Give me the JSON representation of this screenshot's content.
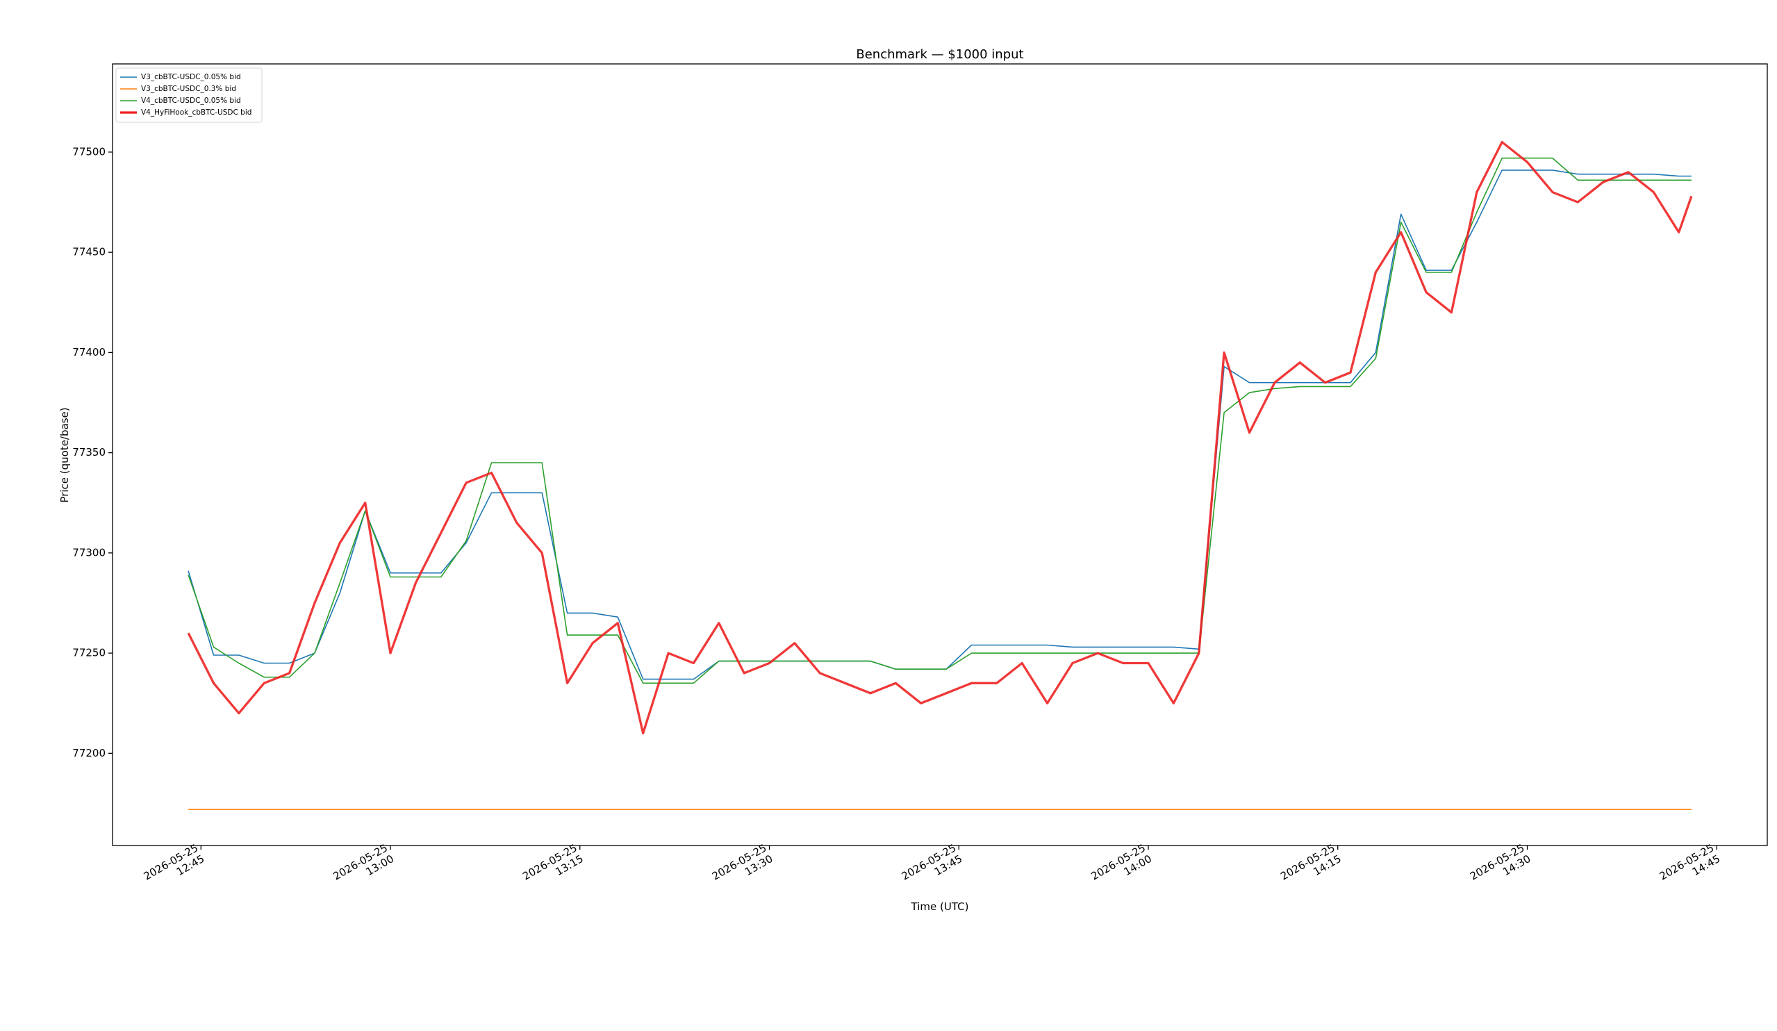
{
  "chart_data": {
    "type": "line",
    "title": "Benchmark — $1000 input",
    "x_label": "Time (UTC)",
    "y_label": "Price (quote/base)",
    "x": [
      "2026-05-25 12:44",
      "2026-05-25 12:46",
      "2026-05-25 12:48",
      "2026-05-25 12:50",
      "2026-05-25 12:52",
      "2026-05-25 12:54",
      "2026-05-25 12:56",
      "2026-05-25 12:58",
      "2026-05-25 13:00",
      "2026-05-25 13:02",
      "2026-05-25 13:04",
      "2026-05-25 13:06",
      "2026-05-25 13:08",
      "2026-05-25 13:10",
      "2026-05-25 13:12",
      "2026-05-25 13:14",
      "2026-05-25 13:16",
      "2026-05-25 13:18",
      "2026-05-25 13:20",
      "2026-05-25 13:22",
      "2026-05-25 13:24",
      "2026-05-25 13:26",
      "2026-05-25 13:28",
      "2026-05-25 13:30",
      "2026-05-25 13:32",
      "2026-05-25 13:34",
      "2026-05-25 13:36",
      "2026-05-25 13:38",
      "2026-05-25 13:40",
      "2026-05-25 13:42",
      "2026-05-25 13:44",
      "2026-05-25 13:46",
      "2026-05-25 13:48",
      "2026-05-25 13:50",
      "2026-05-25 13:52",
      "2026-05-25 13:54",
      "2026-05-25 13:56",
      "2026-05-25 13:58",
      "2026-05-25 14:00",
      "2026-05-25 14:02",
      "2026-05-25 14:04",
      "2026-05-25 14:06",
      "2026-05-25 14:08",
      "2026-05-25 14:10",
      "2026-05-25 14:12",
      "2026-05-25 14:14",
      "2026-05-25 14:16",
      "2026-05-25 14:18",
      "2026-05-25 14:20",
      "2026-05-25 14:22",
      "2026-05-25 14:24",
      "2026-05-25 14:26",
      "2026-05-25 14:28",
      "2026-05-25 14:30",
      "2026-05-25 14:32",
      "2026-05-25 14:34",
      "2026-05-25 14:36",
      "2026-05-25 14:38",
      "2026-05-25 14:40",
      "2026-05-25 14:42",
      "2026-05-25 14:43"
    ],
    "series": [
      {
        "name": "V3_cbBTC-USDC_0.05% bid",
        "color": "#1f77b4",
        "linewidth": 1.6,
        "values": [
          77291,
          77249,
          77249,
          77245,
          77245,
          77250,
          77280,
          77321,
          77290,
          77290,
          77290,
          77305,
          77330,
          77330,
          77330,
          77270,
          77270,
          77268,
          77237,
          77237,
          77237,
          77246,
          77246,
          77246,
          77246,
          77246,
          77246,
          77246,
          77242,
          77242,
          77242,
          77254,
          77254,
          77254,
          77254,
          77253,
          77253,
          77253,
          77253,
          77253,
          77252,
          77393,
          77385,
          77385,
          77385,
          77385,
          77385,
          77400,
          77469,
          77441,
          77441,
          77465,
          77491,
          77491,
          77491,
          77489,
          77489,
          77489,
          77489,
          77488,
          77488
        ]
      },
      {
        "name": "V3_cbBTC-USDC_0.3% bid",
        "color": "#ff7f0e",
        "linewidth": 1.6,
        "values": [
          77172,
          77172,
          77172,
          77172,
          77172,
          77172,
          77172,
          77172,
          77172,
          77172,
          77172,
          77172,
          77172,
          77172,
          77172,
          77172,
          77172,
          77172,
          77172,
          77172,
          77172,
          77172,
          77172,
          77172,
          77172,
          77172,
          77172,
          77172,
          77172,
          77172,
          77172,
          77172,
          77172,
          77172,
          77172,
          77172,
          77172,
          77172,
          77172,
          77172,
          77172,
          77172,
          77172,
          77172,
          77172,
          77172,
          77172,
          77172,
          77172,
          77172,
          77172,
          77172,
          77172,
          77172,
          77172,
          77172,
          77172,
          77172,
          77172,
          77172,
          77172
        ]
      },
      {
        "name": "V4_cbBTC-USDC_0.05% bid",
        "color": "#2ca02c",
        "linewidth": 1.6,
        "values": [
          77289,
          77253,
          77245,
          77238,
          77238,
          77250,
          77285,
          77321,
          77288,
          77288,
          77288,
          77306,
          77345,
          77345,
          77345,
          77259,
          77259,
          77259,
          77235,
          77235,
          77235,
          77246,
          77246,
          77246,
          77246,
          77246,
          77246,
          77246,
          77242,
          77242,
          77242,
          77250,
          77250,
          77250,
          77250,
          77250,
          77250,
          77250,
          77250,
          77250,
          77250,
          77370,
          77380,
          77382,
          77383,
          77383,
          77383,
          77397,
          77465,
          77440,
          77440,
          77470,
          77497,
          77497,
          77497,
          77486,
          77486,
          77486,
          77486,
          77486,
          77486
        ]
      },
      {
        "name": "V4_HyFiHook_cbBTC-USDC bid",
        "color": "#ee2222",
        "linewidth": 3.3,
        "values": [
          77260,
          77235,
          77220,
          77235,
          77240,
          77275,
          77305,
          77325,
          77250,
          77285,
          77310,
          77335,
          77340,
          77315,
          77300,
          77235,
          77255,
          77265,
          77210,
          77250,
          77245,
          77265,
          77240,
          77245,
          77255,
          77240,
          77235,
          77230,
          77235,
          77225,
          77230,
          77235,
          77235,
          77245,
          77225,
          77245,
          77250,
          77245,
          77245,
          77225,
          77250,
          77400,
          77360,
          77385,
          77395,
          77385,
          77390,
          77440,
          77460,
          77430,
          77420,
          77480,
          77505,
          77495,
          77480,
          77475,
          77485,
          77490,
          77480,
          77460,
          77478
        ]
      }
    ],
    "xlim": [
      "2026-05-25 12:38",
      "2026-05-25 14:49"
    ],
    "xticks": [
      "2026-05-25 12:45",
      "2026-05-25 13:00",
      "2026-05-25 13:15",
      "2026-05-25 13:30",
      "2026-05-25 13:45",
      "2026-05-25 14:00",
      "2026-05-25 14:15",
      "2026-05-25 14:30",
      "2026-05-25 14:45"
    ],
    "ylim": [
      77154,
      77544
    ],
    "yticks": [
      77200,
      77250,
      77300,
      77350,
      77400,
      77450,
      77500
    ],
    "grid": false,
    "legend": "upper left"
  }
}
